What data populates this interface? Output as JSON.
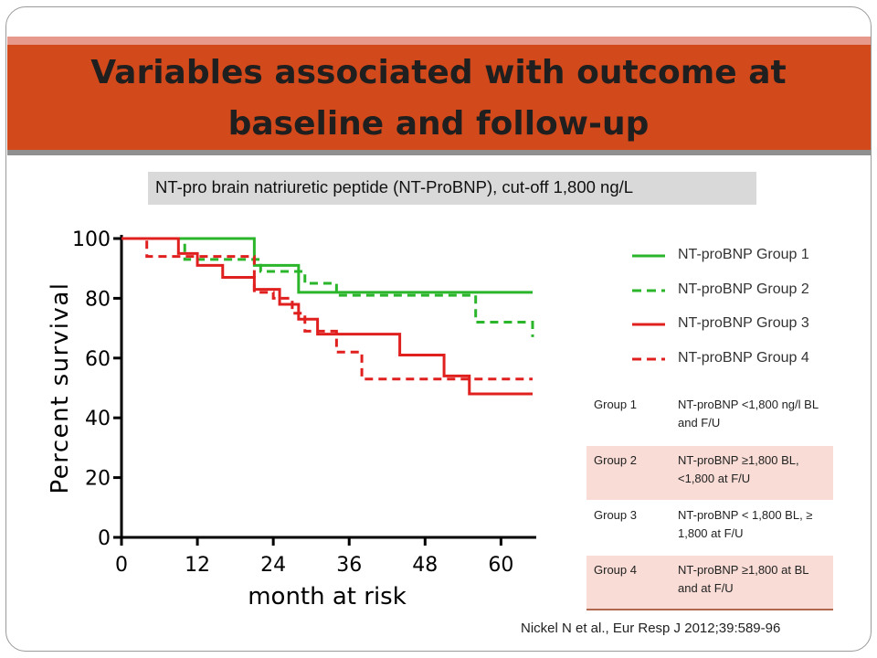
{
  "slide": {
    "title": "Variables associated with outcome at baseline and follow-up",
    "subtitle": "NT-pro brain natriuretic peptide (NT-ProBNP), cut-off 1,800 ng/L",
    "citation": "Nickel N et al., Eur Resp J 2012;39:589-96"
  },
  "colors": {
    "title_band": "#d24a1b",
    "green": "#2bb52b",
    "red": "#e0201f",
    "table_pink": "#f8dcd5"
  },
  "legend": [
    {
      "label": "NT-proBNP Group 1",
      "color": "#2bb52b",
      "dash": "solid"
    },
    {
      "label": "NT-proBNP Group 2",
      "color": "#2bb52b",
      "dash": "dashed"
    },
    {
      "label": "NT-proBNP Group 3",
      "color": "#e0201f",
      "dash": "solid"
    },
    {
      "label": "NT-proBNP Group 4",
      "color": "#e0201f",
      "dash": "dashed"
    }
  ],
  "group_table": [
    {
      "group": "Group 1",
      "description": "NT-proBNP <1,800 ng/l BL and F/U"
    },
    {
      "group": "Group 2",
      "description": "NT-proBNP ≥1,800 BL, <1,800 at F/U"
    },
    {
      "group": "Group 3",
      "description": "NT-proBNP < 1,800 BL, ≥ 1,800 at F/U"
    },
    {
      "group": "Group 4",
      "description": "NT-proBNP ≥1,800 at BL and at F/U"
    }
  ],
  "chart_data": {
    "type": "line",
    "xlabel": "month at risk",
    "ylabel": "Percent survival",
    "xlim": [
      0,
      65
    ],
    "ylim": [
      0,
      100
    ],
    "xticks": [
      0,
      12,
      24,
      36,
      48,
      60
    ],
    "yticks": [
      0,
      20,
      40,
      60,
      80,
      100
    ],
    "step": true,
    "series": [
      {
        "name": "NT-proBNP Group 1",
        "color": "#2bb52b",
        "dash": "solid",
        "x": [
          0,
          21,
          28,
          65
        ],
        "y": [
          100,
          91,
          82,
          82
        ]
      },
      {
        "name": "NT-proBNP Group 2",
        "color": "#2bb52b",
        "dash": "dashed",
        "x": [
          0,
          10,
          22,
          29,
          34,
          56,
          65
        ],
        "y": [
          100,
          93,
          89,
          85,
          81,
          72,
          67
        ]
      },
      {
        "name": "NT-proBNP Group 3",
        "color": "#e0201f",
        "dash": "solid",
        "x": [
          0,
          9,
          12,
          16,
          21,
          25,
          28,
          31,
          34,
          44,
          51,
          55,
          65
        ],
        "y": [
          100,
          95,
          91,
          87,
          83,
          78,
          73,
          68,
          68,
          61,
          54,
          48,
          48
        ]
      },
      {
        "name": "NT-proBNP Group 4",
        "color": "#e0201f",
        "dash": "dashed",
        "x": [
          0,
          4,
          21,
          24,
          27,
          29,
          34,
          38,
          65
        ],
        "y": [
          100,
          94,
          82,
          80,
          75,
          69,
          62,
          53,
          53
        ]
      }
    ]
  }
}
